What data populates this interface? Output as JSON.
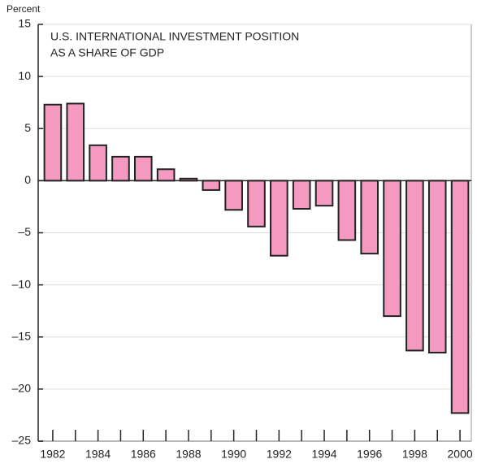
{
  "chart_data": {
    "type": "bar",
    "title": [
      "U.S. INTERNATIONAL INVESTMENT POSITION",
      "AS A SHARE OF GDP"
    ],
    "y_label": "Percent",
    "categories": [
      "1982",
      null,
      "1984",
      null,
      "1986",
      null,
      "1988",
      null,
      "1990",
      null,
      "1992",
      null,
      "1994",
      null,
      "1996",
      null,
      "1998",
      null,
      "2000"
    ],
    "values": [
      7.3,
      7.4,
      3.4,
      2.3,
      2.3,
      1.1,
      0.2,
      -0.9,
      -2.8,
      -4.4,
      -7.2,
      -2.7,
      -2.4,
      -5.7,
      -7.0,
      -13.0,
      -16.3,
      -16.5,
      -22.3
    ],
    "color": "#f49ac1",
    "ylim": [
      -25,
      15
    ],
    "yticks": [
      15,
      10,
      5,
      0,
      {
        "value": -5,
        "label": "–5"
      },
      {
        "value": -10,
        "label": "–10"
      },
      {
        "value": -15,
        "label": "–15"
      },
      {
        "value": -20,
        "label": "–20"
      },
      {
        "value": -25,
        "label": "–25"
      }
    ],
    "grid": true
  }
}
